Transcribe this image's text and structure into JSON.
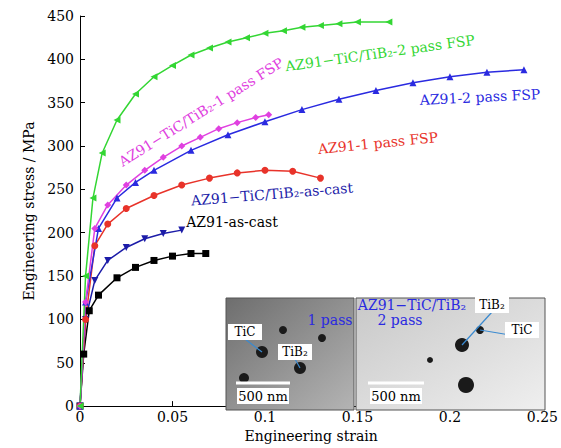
{
  "chart_data": {
    "type": "line",
    "x_label": "Engineering strain",
    "y_label": "Engineering stress / MPa",
    "xlim": [
      0,
      0.25
    ],
    "xticks": [
      0,
      0.05,
      0.1,
      0.15,
      0.2,
      0.25
    ],
    "ylim": [
      0,
      450
    ],
    "yticks": [
      0,
      50,
      100,
      150,
      200,
      250,
      300,
      350,
      400,
      450
    ],
    "grid": false,
    "series": [
      {
        "name": "AZ91-as-cast",
        "color": "#000000",
        "marker": "square",
        "line_style": "solid",
        "x": [
          0,
          0.002,
          0.005,
          0.01,
          0.02,
          0.03,
          0.04,
          0.05,
          0.06,
          0.068
        ],
        "values": [
          0,
          60,
          110,
          128,
          148,
          160,
          168,
          173,
          176,
          176
        ]
      },
      {
        "name": "AZ91−TiC/TiB₂-as-cast",
        "color": "#1c1ca8",
        "marker": "triangle_down",
        "line_style": "solid",
        "x": [
          0,
          0.003,
          0.008,
          0.015,
          0.025,
          0.035,
          0.045,
          0.055
        ],
        "values": [
          0,
          100,
          145,
          168,
          183,
          193,
          199,
          203
        ]
      },
      {
        "name": "AZ91-1 pass FSP",
        "color": "#e8332a",
        "marker": "circle",
        "line_style": "solid",
        "x": [
          0,
          0.003,
          0.008,
          0.015,
          0.025,
          0.04,
          0.055,
          0.07,
          0.085,
          0.1,
          0.115,
          0.13
        ],
        "values": [
          0,
          100,
          185,
          210,
          228,
          243,
          255,
          263,
          269,
          272,
          271,
          263
        ]
      },
      {
        "name": "AZ91-2 pass FSP",
        "color": "#2a2ae0",
        "marker": "triangle",
        "line_style": "solid",
        "x": [
          0,
          0.003,
          0.01,
          0.02,
          0.03,
          0.04,
          0.06,
          0.08,
          0.1,
          0.12,
          0.14,
          0.16,
          0.18,
          0.2,
          0.22,
          0.24
        ],
        "values": [
          0,
          120,
          205,
          240,
          258,
          272,
          295,
          313,
          328,
          342,
          354,
          364,
          373,
          380,
          385,
          388
        ]
      },
      {
        "name": "AZ91−TiC/TiB₂-1 pass FSP",
        "color": "#e040e0",
        "marker": "diamond",
        "line_style": "solid",
        "x": [
          0,
          0.003,
          0.008,
          0.015,
          0.025,
          0.035,
          0.045,
          0.055,
          0.065,
          0.075,
          0.085,
          0.095,
          0.102
        ],
        "values": [
          0,
          120,
          205,
          232,
          255,
          272,
          287,
          300,
          310,
          320,
          327,
          333,
          336
        ]
      },
      {
        "name": "AZ91−TiC/TiB₂-2 pass FSP",
        "color": "#33d633",
        "marker": "triangle_left",
        "line_style": "solid",
        "x": [
          0,
          0.003,
          0.007,
          0.012,
          0.02,
          0.03,
          0.04,
          0.05,
          0.06,
          0.07,
          0.08,
          0.09,
          0.1,
          0.11,
          0.12,
          0.13,
          0.14,
          0.15,
          0.167
        ],
        "values": [
          0,
          150,
          240,
          292,
          330,
          360,
          380,
          393,
          405,
          413,
          420,
          425,
          430,
          433,
          437,
          439,
          441,
          443,
          443
        ]
      }
    ],
    "inset": {
      "title": "AZ91−TiC/TiB₂",
      "panels": [
        {
          "label": "1 pass",
          "scale_bar": "500 nm",
          "particles": [
            "TiC",
            "TiB₂"
          ]
        },
        {
          "label": "2 pass",
          "scale_bar": "500 nm",
          "particles": [
            "TiB₂",
            "TiC"
          ]
        }
      ]
    }
  }
}
